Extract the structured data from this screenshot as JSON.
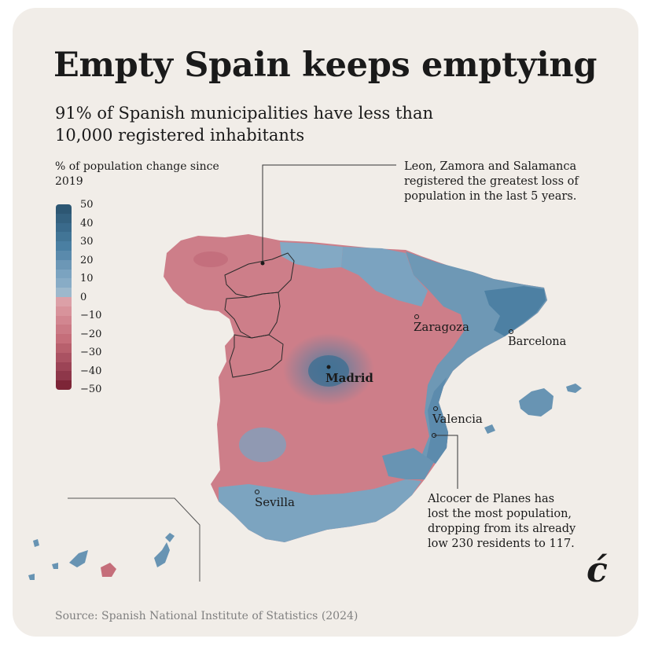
{
  "title": "Empty Spain keeps emptying",
  "subtitle": "91% of Spanish municipalities have less than 10,000 registered inhabitants",
  "legend": {
    "title": "% of population change since 2019",
    "ticks": [
      "50",
      "40",
      "30",
      "20",
      "10",
      "0",
      "−10",
      "−20",
      "−30",
      "−40",
      "−50"
    ],
    "range": [
      -50,
      50
    ]
  },
  "colors": {
    "growth_strong": "#2d5773",
    "growth_mid": "#4a7fa2",
    "growth_light": "#83a9c4",
    "decline_light": "#d8939b",
    "decline_mid": "#c56e7a",
    "decline_strong": "#7d2537",
    "background": "#f1ede8"
  },
  "cities": {
    "madrid": "Madrid",
    "zaragoza": "Zaragoza",
    "barcelona": "Barcelona",
    "valencia": "Valencia",
    "sevilla": "Sevilla"
  },
  "annotations": {
    "leon": "Leon, Zamora and Salamanca registered the greatest loss of population in the last 5 years.",
    "alcocer": "Alcocer de Planes has lost the most population, dropping from its already low 230 residents to 117."
  },
  "source": "Source: Spanish National Institute of Statistics (2024)",
  "logo": "ć"
}
